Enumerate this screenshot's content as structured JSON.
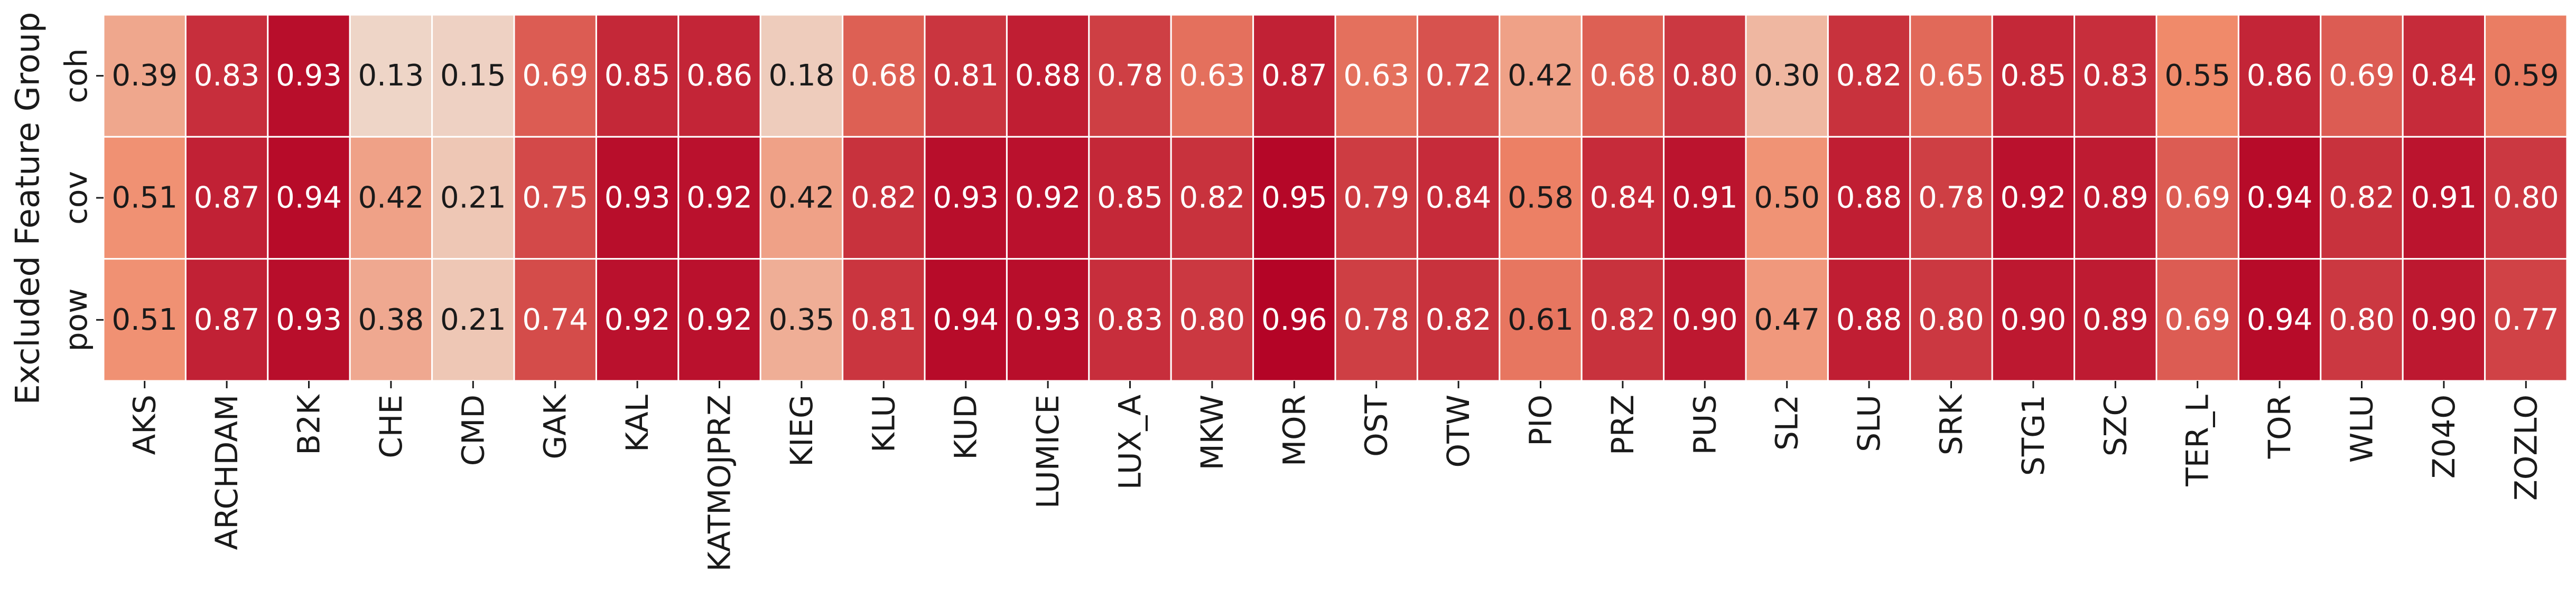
{
  "chart_data": {
    "type": "heatmap",
    "title": "",
    "xlabel": "",
    "ylabel": "Excluded Feature Group",
    "columns": [
      "AKS",
      "ARCHDAM",
      "B2K",
      "CHE",
      "CMD",
      "GAK",
      "KAL",
      "KATMOJPRZ",
      "KIEG",
      "KLU",
      "KUD",
      "LUMICE",
      "LUX_A",
      "MKW",
      "MOR",
      "OST",
      "OTW",
      "PIO",
      "PRZ",
      "PUS",
      "SL2",
      "SLU",
      "SRK",
      "STG1",
      "SZC",
      "TER_L",
      "TOR",
      "WLU",
      "Z04O",
      "ZOZLO"
    ],
    "rows": [
      "coh",
      "cov",
      "pow"
    ],
    "values": [
      [
        0.39,
        0.83,
        0.93,
        0.13,
        0.15,
        0.69,
        0.85,
        0.86,
        0.18,
        0.68,
        0.81,
        0.88,
        0.78,
        0.63,
        0.87,
        0.63,
        0.72,
        0.42,
        0.68,
        0.8,
        0.3,
        0.82,
        0.65,
        0.85,
        0.83,
        0.55,
        0.86,
        0.69,
        0.84,
        0.59
      ],
      [
        0.51,
        0.87,
        0.94,
        0.42,
        0.21,
        0.75,
        0.93,
        0.92,
        0.42,
        0.82,
        0.93,
        0.92,
        0.85,
        0.82,
        0.95,
        0.79,
        0.84,
        0.58,
        0.84,
        0.91,
        0.5,
        0.88,
        0.78,
        0.92,
        0.89,
        0.69,
        0.94,
        0.82,
        0.91,
        0.8
      ],
      [
        0.51,
        0.87,
        0.93,
        0.38,
        0.21,
        0.74,
        0.92,
        0.92,
        0.35,
        0.81,
        0.94,
        0.93,
        0.83,
        0.8,
        0.96,
        0.78,
        0.82,
        0.61,
        0.82,
        0.9,
        0.47,
        0.88,
        0.8,
        0.9,
        0.89,
        0.69,
        0.94,
        0.8,
        0.9,
        0.77
      ]
    ],
    "colormap": "coolwarm-red",
    "value_format": "2-decimal",
    "colorbar": false,
    "colors": {
      "low": "#eed5c7",
      "mid": "#f08a6a",
      "high": "#b40426",
      "text_dark": "#1a1a1a",
      "text_light": "#ffffff",
      "grid": "#ffffff"
    }
  }
}
